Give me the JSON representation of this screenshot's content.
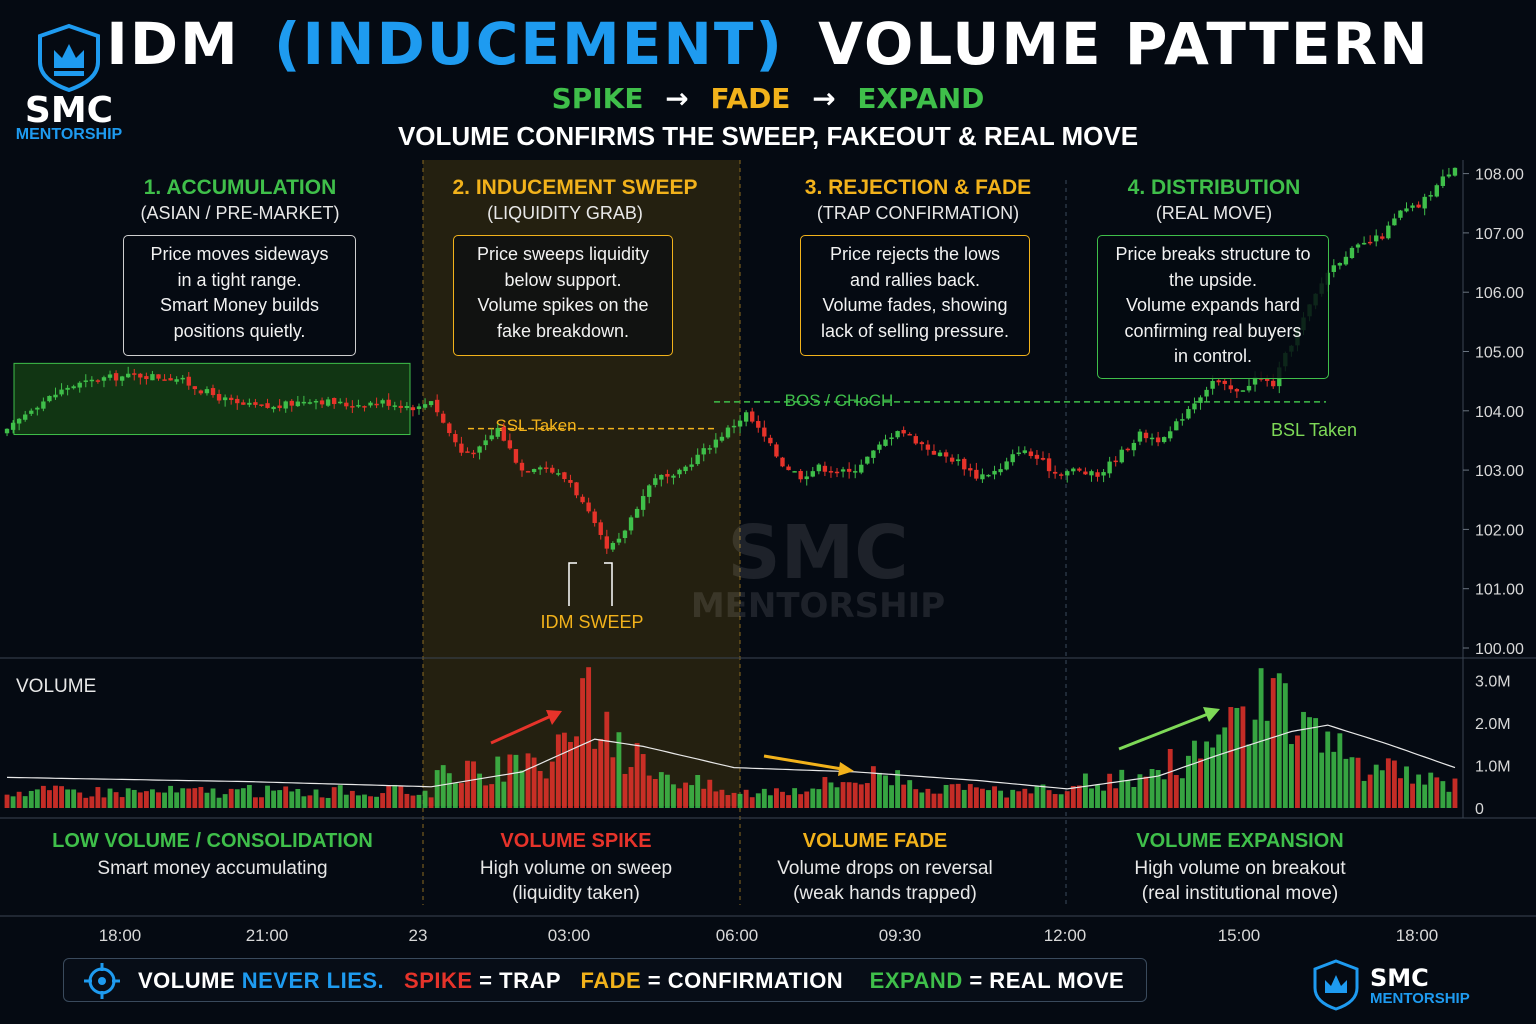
{
  "title": {
    "part1": "IDM",
    "part2": "(INDUCEMENT)",
    "part3": "VOLUME PATTERN"
  },
  "flow": {
    "spike": "SPIKE",
    "fade": "FADE",
    "expand": "EXPAND",
    "arrow": "→"
  },
  "subtitle": "VOLUME CONFIRMS THE SWEEP, FAKEOUT & REAL MOVE",
  "logo": {
    "name": "SMC",
    "sub": "MENTORSHIP"
  },
  "watermark": {
    "name": "SMC",
    "sub": "MENTORSHIP"
  },
  "colors": {
    "green": "#3fbf4a",
    "red": "#e6332a",
    "blue": "#1e9bf0",
    "yellow": "#f2b21b",
    "lime": "#7ed957"
  },
  "phases": [
    {
      "title": "1. ACCUMULATION",
      "sub": "(ASIAN / PRE-MARKET)",
      "note": [
        "Price moves sideways",
        "in a tight range.",
        "Smart Money builds",
        "positions quietly."
      ]
    },
    {
      "title": "2. INDUCEMENT SWEEP",
      "sub": "(LIQUIDITY GRAB)",
      "note": [
        "Price sweeps liquidity",
        "below support.",
        "Volume spikes on the",
        "fake breakdown."
      ]
    },
    {
      "title": "3. REJECTION & FADE",
      "sub": "(TRAP CONFIRMATION)",
      "note": [
        "Price rejects the lows",
        "and rallies back.",
        "Volume fades, showing",
        "lack of selling pressure."
      ]
    },
    {
      "title": "4. DISTRIBUTION",
      "sub": "(REAL MOVE)",
      "note": [
        "Price breaks structure to",
        "the upside.",
        "Volume expands hard",
        "confirming real buyers",
        "in control."
      ]
    }
  ],
  "annotations": {
    "ssl": "SSL Taken",
    "bos": "BOS / CHoCH",
    "bsl": "BSL Taken",
    "idm_sweep": "IDM SWEEP"
  },
  "volume_label": "VOLUME",
  "volume_phases": [
    {
      "title": "LOW VOLUME / CONSOLIDATION",
      "lines": [
        "Smart money accumulating"
      ]
    },
    {
      "title": "VOLUME SPIKE",
      "lines": [
        "High volume on sweep",
        "(liquidity taken)"
      ]
    },
    {
      "title": "VOLUME FADE",
      "lines": [
        "Volume drops on reversal",
        "(weak hands trapped)"
      ]
    },
    {
      "title": "VOLUME EXPANSION",
      "lines": [
        "High volume on breakout",
        "(real institutional move)"
      ]
    }
  ],
  "footer": {
    "t1": "VOLUME",
    "t2": "NEVER LIES.",
    "t3": "SPIKE",
    "t4": "= TRAP",
    "t5": "FADE",
    "t6": "= CONFIRMATION",
    "t7": "EXPAND",
    "t8": "= REAL MOVE"
  },
  "chart_data": [
    {
      "type": "candlestick",
      "title": "",
      "x_ticks": [
        "18:00",
        "21:00",
        "23",
        "03:00",
        "06:00",
        "09:30",
        "12:00",
        "15:00",
        "18:00"
      ],
      "y_ticks": [
        "100.00",
        "101.00",
        "102.00",
        "103.00",
        "104.00",
        "105.00",
        "106.00",
        "107.00",
        "108.00"
      ],
      "ylim": [
        100,
        108.4
      ],
      "levels": {
        "ssl_taken": 103.7,
        "bos_choch": 104.15,
        "bsl_taken": 104.15,
        "accumulation_range": [
          103.6,
          104.8
        ]
      },
      "close_path": [
        [
          0,
          103.65
        ],
        [
          4,
          104.05
        ],
        [
          10,
          104.4
        ],
        [
          16,
          104.55
        ],
        [
          22,
          104.6
        ],
        [
          28,
          104.55
        ],
        [
          32,
          104.35
        ],
        [
          38,
          104.1
        ],
        [
          44,
          104.05
        ],
        [
          50,
          104.2
        ],
        [
          56,
          104.1
        ],
        [
          62,
          104.15
        ],
        [
          68,
          104.05
        ],
        [
          70,
          104.2
        ],
        [
          72,
          103.8
        ],
        [
          75,
          103.3
        ],
        [
          78,
          103.35
        ],
        [
          81,
          103.7
        ],
        [
          85,
          103.0
        ],
        [
          88,
          103.1
        ],
        [
          93,
          102.8
        ],
        [
          96,
          102.25
        ],
        [
          99,
          101.65
        ],
        [
          101,
          101.8
        ],
        [
          104,
          102.4
        ],
        [
          107,
          102.9
        ],
        [
          110,
          102.85
        ],
        [
          113,
          103.15
        ],
        [
          118,
          103.6
        ],
        [
          122,
          103.95
        ],
        [
          125,
          103.55
        ],
        [
          128,
          103.1
        ],
        [
          131,
          102.9
        ],
        [
          134,
          103.05
        ],
        [
          139,
          102.95
        ],
        [
          143,
          103.3
        ],
        [
          147,
          103.7
        ],
        [
          150,
          103.5
        ],
        [
          153,
          103.3
        ],
        [
          157,
          103.15
        ],
        [
          160,
          102.9
        ],
        [
          164,
          103.0
        ],
        [
          167,
          103.35
        ],
        [
          170,
          103.2
        ],
        [
          173,
          102.95
        ],
        [
          176,
          103.0
        ],
        [
          180,
          102.9
        ],
        [
          183,
          103.2
        ],
        [
          187,
          103.6
        ],
        [
          191,
          103.5
        ],
        [
          195,
          104.05
        ],
        [
          199,
          104.5
        ],
        [
          203,
          104.3
        ],
        [
          206,
          104.55
        ],
        [
          209,
          104.45
        ],
        [
          212,
          105.15
        ],
        [
          215,
          105.75
        ],
        [
          218,
          106.35
        ],
        [
          221,
          106.65
        ],
        [
          224,
          106.8
        ],
        [
          227,
          106.95
        ],
        [
          230,
          107.35
        ],
        [
          233,
          107.45
        ],
        [
          236,
          107.8
        ],
        [
          239,
          108.15
        ]
      ],
      "n_candles": 240
    },
    {
      "type": "bar",
      "name": "VOLUME",
      "y_ticks": [
        "0",
        "1.0M",
        "2.0M",
        "3.0M"
      ],
      "ylim": [
        0,
        3.3
      ],
      "unit": "M",
      "profile": [
        [
          0,
          0.42
        ],
        [
          70,
          0.42
        ],
        [
          71,
          0.85
        ],
        [
          85,
          1.0
        ],
        [
          90,
          1.3
        ],
        [
          95,
          2.4
        ],
        [
          96,
          3.0
        ],
        [
          97,
          2.4
        ],
        [
          100,
          1.6
        ],
        [
          110,
          0.8
        ],
        [
          120,
          0.35
        ],
        [
          135,
          0.6
        ],
        [
          145,
          0.9
        ],
        [
          155,
          0.45
        ],
        [
          170,
          0.4
        ],
        [
          180,
          0.7
        ],
        [
          190,
          1.0
        ],
        [
          200,
          1.6
        ],
        [
          205,
          2.3
        ],
        [
          210,
          2.9
        ],
        [
          215,
          2.2
        ],
        [
          225,
          1.0
        ],
        [
          239,
          0.6
        ]
      ],
      "ma_path": [
        [
          0,
          0.72
        ],
        [
          40,
          0.62
        ],
        [
          70,
          0.5
        ],
        [
          85,
          0.85
        ],
        [
          92,
          1.3
        ],
        [
          97,
          1.62
        ],
        [
          105,
          1.45
        ],
        [
          120,
          0.95
        ],
        [
          140,
          0.85
        ],
        [
          160,
          0.65
        ],
        [
          175,
          0.45
        ],
        [
          190,
          0.75
        ],
        [
          200,
          1.25
        ],
        [
          212,
          1.8
        ],
        [
          218,
          1.95
        ],
        [
          228,
          1.5
        ],
        [
          239,
          0.95
        ]
      ]
    }
  ]
}
